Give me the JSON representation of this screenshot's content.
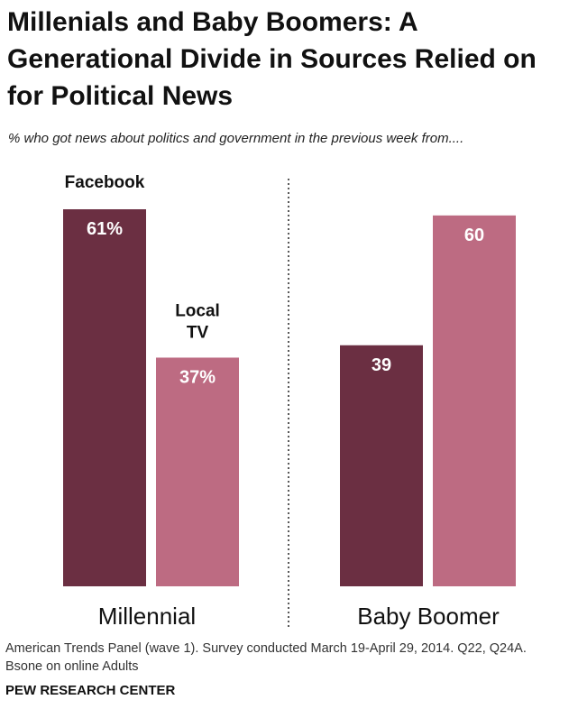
{
  "chart_data": {
    "type": "bar",
    "title": "Millenials and Baby Boomers: A Generational Divide in Sources Relied on for Political News",
    "subtitle": "% who got news about politics and government in the previous week from....",
    "categories": [
      "Millennial",
      "Baby Boomer"
    ],
    "series": [
      {
        "name": "Facebook",
        "values": [
          61,
          39
        ],
        "labels": [
          "61%",
          "39"
        ],
        "color": "#6b2f42"
      },
      {
        "name": "Local TV",
        "values": [
          37,
          60
        ],
        "labels": [
          "37%",
          "60"
        ],
        "color": "#bd6b82"
      }
    ],
    "series_label_lines": [
      [
        "Facebook"
      ],
      [
        "Local",
        "TV"
      ]
    ],
    "ylim": [
      0,
      61
    ],
    "grid": false,
    "note": "American Trends Panel (wave 1). Survey conducted March 19-April 29, 2014. Q22, Q24A.",
    "note2": "Bsone on online Adults",
    "source": "PEW RESEARCH CENTER"
  }
}
